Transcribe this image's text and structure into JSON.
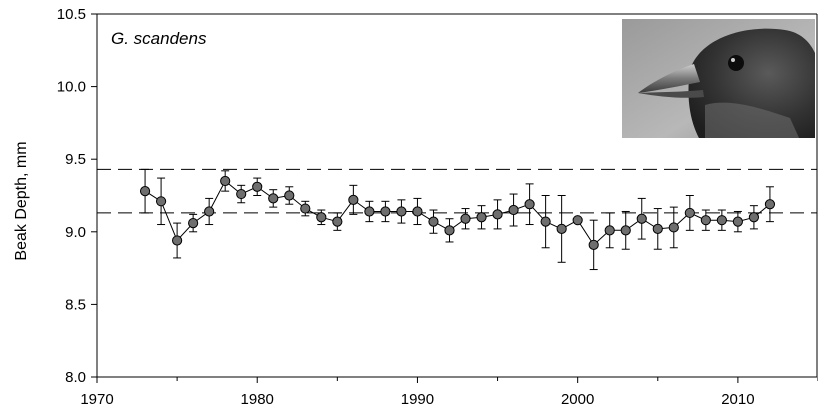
{
  "chart_data": {
    "type": "scatter",
    "species_label": "G. scandens",
    "xlabel": "",
    "ylabel": "Beak Depth, mm",
    "xlim": [
      1970,
      2015
    ],
    "ylim": [
      8.0,
      10.5
    ],
    "x_ticks": [
      1970,
      1980,
      1990,
      2000,
      2010
    ],
    "y_ticks": [
      "8.0",
      "8.5",
      "9.0",
      "9.5",
      "10.0",
      "10.5"
    ],
    "grid": false,
    "connected_points": true,
    "marker_color": "#6e6e6e",
    "reference_lines": [
      9.43,
      9.13
    ],
    "inset_image": "ground finch head, grayscale photograph",
    "series": [
      {
        "x": [
          1973,
          1974,
          1975,
          1976,
          1977,
          1978,
          1979,
          1980,
          1981,
          1982,
          1983,
          1984,
          1985,
          1986,
          1987,
          1988,
          1989,
          1990,
          1991,
          1992,
          1993,
          1994,
          1995,
          1996,
          1997,
          1998,
          1999,
          2000,
          2001,
          2002,
          2003,
          2004,
          2005,
          2006,
          2007,
          2008,
          2009,
          2010,
          2011,
          2012
        ],
        "y": [
          9.28,
          9.21,
          8.94,
          9.06,
          9.14,
          9.35,
          9.26,
          9.31,
          9.23,
          9.25,
          9.16,
          9.1,
          9.07,
          9.22,
          9.14,
          9.14,
          9.14,
          9.14,
          9.07,
          9.01,
          9.09,
          9.1,
          9.12,
          9.15,
          9.19,
          9.07,
          9.02,
          9.08,
          8.91,
          9.01,
          9.01,
          9.09,
          9.02,
          9.03,
          9.13,
          9.08,
          9.08,
          9.07,
          9.1,
          9.19
        ],
        "err": [
          0.15,
          0.16,
          0.12,
          0.06,
          0.09,
          0.07,
          0.06,
          0.06,
          0.06,
          0.06,
          0.05,
          0.05,
          0.06,
          0.1,
          0.07,
          0.07,
          0.08,
          0.09,
          0.08,
          0.08,
          0.07,
          0.08,
          0.1,
          0.11,
          0.14,
          0.18,
          0.23,
          0.0,
          0.17,
          0.12,
          0.13,
          0.14,
          0.14,
          0.14,
          0.12,
          0.07,
          0.07,
          0.07,
          0.08,
          0.12
        ]
      }
    ]
  }
}
